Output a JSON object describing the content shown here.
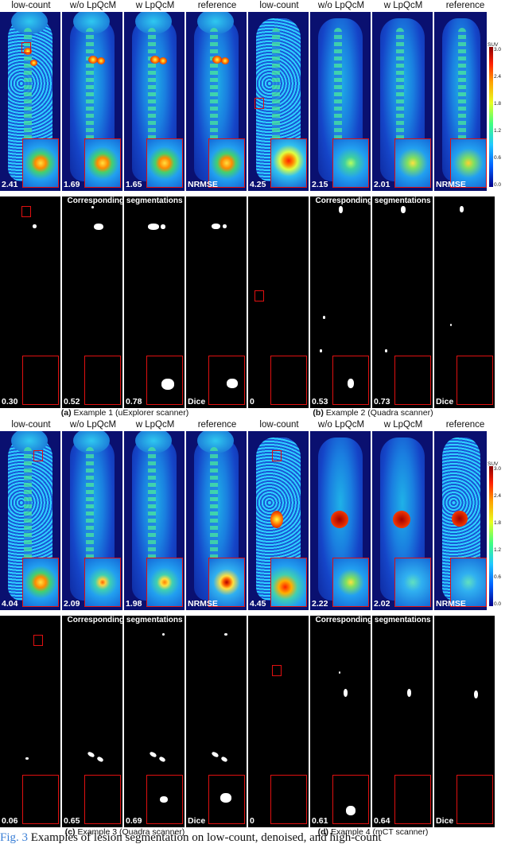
{
  "column_headers": [
    "low-count",
    "w/o LpQcM",
    "w LpQcM",
    "reference"
  ],
  "segmentation_title": "Corresponding segmentations",
  "colorbar": {
    "unit": "SUV",
    "ticks": [
      "3.0",
      "2.4",
      "1.8",
      "1.2",
      "0.6",
      "0.0"
    ]
  },
  "examples": [
    {
      "caption_prefix": "(a)",
      "caption_text": "Example 1 (uExplorer scanner)",
      "nrmse": [
        "2.41",
        "1.69",
        "1.65",
        "NRMSE"
      ],
      "dice": [
        "0.30",
        "0.52",
        "0.78",
        "Dice"
      ]
    },
    {
      "caption_prefix": "(b)",
      "caption_text": "Example 2 (Quadra scanner)",
      "nrmse": [
        "4.25",
        "2.15",
        "2.01",
        "NRMSE"
      ],
      "dice": [
        "0",
        "0.53",
        "0.73",
        "Dice"
      ]
    },
    {
      "caption_prefix": "(c)",
      "caption_text": "Example 3 (Quadra scanner)",
      "nrmse": [
        "4.04",
        "2.09",
        "1.98",
        "NRMSE"
      ],
      "dice": [
        "0.06",
        "0.65",
        "0.69",
        "Dice"
      ]
    },
    {
      "caption_prefix": "(d)",
      "caption_text": "Example 4 (mCT scanner)",
      "nrmse": [
        "4.45",
        "2.22",
        "2.02",
        "NRMSE"
      ],
      "dice": [
        "0",
        "0.61",
        "0.64",
        "Dice"
      ]
    }
  ],
  "figure_caption": {
    "label": "Fig. 3",
    "text": "Examples of lesion segmentation on low-count, denoised, and high-count"
  }
}
